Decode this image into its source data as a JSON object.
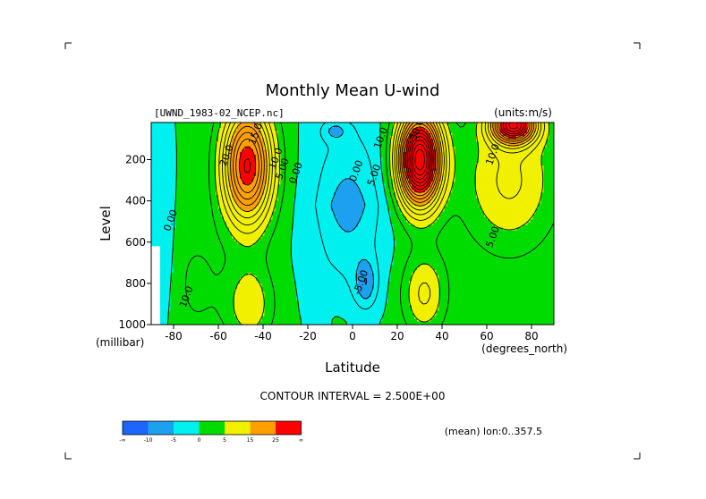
{
  "chart_data": {
    "type": "contour",
    "title": "Monthly Mean U-wind",
    "dataset_label": "[UWND_1983-02_NCEP.nc]",
    "units_label": "(units:m/s)",
    "xlabel": "Latitude",
    "x_units": "(degrees_north)",
    "ylabel": "Level",
    "y_units": "(millibar)",
    "x_ticks": [
      -80,
      -60,
      -40,
      -20,
      0,
      20,
      40,
      60,
      80
    ],
    "y_ticks": [
      200,
      400,
      600,
      800,
      1000
    ],
    "xlim": [
      -90,
      90
    ],
    "ylim": [
      1000,
      20
    ],
    "contour_interval_text": "CONTOUR INTERVAL = 2.500E+00",
    "mean_text": "(mean) lon:0..357.5",
    "contour_labels": [
      {
        "text": "20.0",
        "lat": -55,
        "lev": 185
      },
      {
        "text": "15.0",
        "lat": -42,
        "lev": 80
      },
      {
        "text": "10.0",
        "lat": -33,
        "lev": 200
      },
      {
        "text": "5.00",
        "lat": -30,
        "lev": 250
      },
      {
        "text": "0.00",
        "lat": -24,
        "lev": 270
      },
      {
        "text": "0.00",
        "lat": -80,
        "lev": 500
      },
      {
        "text": "10.0",
        "lat": -73,
        "lev": 870
      },
      {
        "text": "0.00",
        "lat": 3,
        "lev": 260
      },
      {
        "text": "-5.00",
        "lat": 5,
        "lev": 800
      },
      {
        "text": "5.00",
        "lat": 11,
        "lev": 280
      },
      {
        "text": "10.0",
        "lat": 14,
        "lev": 100
      },
      {
        "text": "30.0",
        "lat": 30,
        "lev": 60
      },
      {
        "text": "10.0",
        "lat": 64,
        "lev": 180
      },
      {
        "text": "5.00",
        "lat": 64,
        "lev": 580
      }
    ],
    "jets": [
      {
        "lat": -47,
        "lev": 230,
        "max": 28
      },
      {
        "lat": 30,
        "lev": 200,
        "max": 42
      },
      {
        "lat": 72,
        "lev": 30,
        "max": 32
      }
    ],
    "colorbar": {
      "colors": [
        "#1e64ff",
        "#1ea0f0",
        "#00f0f0",
        "#00dc00",
        "#f0f000",
        "#ffa000",
        "#ff0000"
      ],
      "labels": [
        "-∞",
        "-10",
        "-5",
        "0",
        "5",
        "15",
        "25",
        "∞"
      ]
    }
  }
}
